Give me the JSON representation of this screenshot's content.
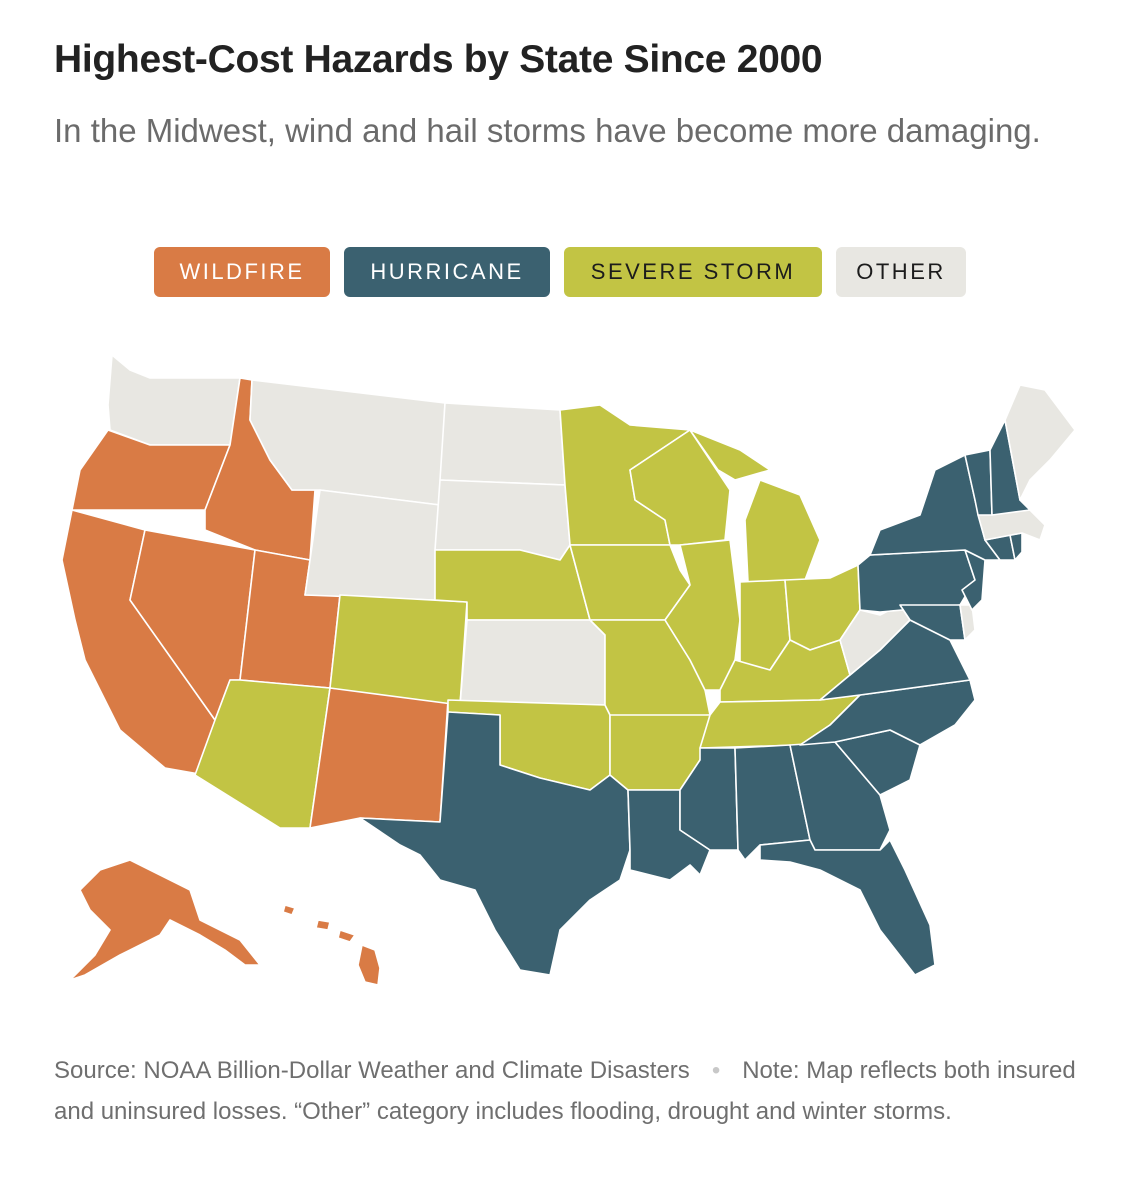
{
  "header": {
    "title": "Highest-Cost Hazards by State Since 2000",
    "subtitle": "In the Midwest, wind and hail storms have become more damaging."
  },
  "legend": [
    {
      "key": "wildfire",
      "label": "WILDFIRE",
      "color": "#d97b45"
    },
    {
      "key": "hurricane",
      "label": "HURRICANE",
      "color": "#3b6170"
    },
    {
      "key": "storm",
      "label": "SEVERE STORM",
      "color": "#c2c444"
    },
    {
      "key": "other",
      "label": "OTHER",
      "color": "#e8e7e2"
    }
  ],
  "map": {
    "state_hazards": {
      "WA": "other",
      "OR": "wildfire",
      "CA": "wildfire",
      "ID": "wildfire",
      "NV": "wildfire",
      "UT": "wildfire",
      "AZ": "storm",
      "NM": "wildfire",
      "MT": "other",
      "WY": "other",
      "CO": "storm",
      "ND": "other",
      "SD": "other",
      "NE": "storm",
      "KS": "other",
      "OK": "storm",
      "TX": "hurricane",
      "MN": "storm",
      "IA": "storm",
      "MO": "storm",
      "AR": "storm",
      "LA": "hurricane",
      "WI": "storm",
      "IL": "storm",
      "MI": "storm",
      "IN": "storm",
      "OH": "storm",
      "KY": "storm",
      "TN": "storm",
      "MS": "hurricane",
      "AL": "hurricane",
      "GA": "hurricane",
      "FL": "hurricane",
      "SC": "hurricane",
      "NC": "hurricane",
      "VA": "hurricane",
      "WV": "other",
      "MD": "hurricane",
      "DE": "other",
      "PA": "hurricane",
      "NJ": "hurricane",
      "NY": "hurricane",
      "CT": "hurricane",
      "RI": "hurricane",
      "MA": "other",
      "VT": "hurricane",
      "NH": "hurricane",
      "ME": "other",
      "AK": "wildfire",
      "HI": "wildfire"
    }
  },
  "footer": {
    "source": "Source: NOAA Billion-Dollar Weather and Climate Disasters",
    "separator": "•",
    "note": "Note: Map reflects both insured and uninsured losses. “Other” category includes flooding, drought and winter storms."
  }
}
